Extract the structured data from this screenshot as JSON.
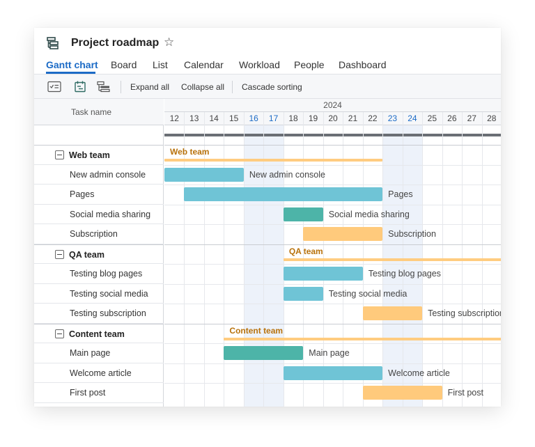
{
  "header": {
    "title": "Project roadmap",
    "app_icon": "gantt-icon",
    "star_icon": "star-icon"
  },
  "tabs": [
    {
      "label": "Gantt chart",
      "active": true
    },
    {
      "label": "Board"
    },
    {
      "label": "List"
    },
    {
      "label": "Calendar"
    },
    {
      "label": "Workload"
    },
    {
      "label": "People"
    },
    {
      "label": "Dashboard"
    }
  ],
  "toolbar": {
    "icons": [
      "checklist-icon",
      "schedule-icon",
      "hierarchy-icon"
    ],
    "expand_all": "Expand all",
    "collapse_all": "Collapse all",
    "cascade_sorting": "Cascade sorting"
  },
  "grid": {
    "column_header": "Task name",
    "year": "2024",
    "days": [
      "12",
      "13",
      "14",
      "15",
      "16",
      "17",
      "18",
      "19",
      "20",
      "21",
      "22",
      "23",
      "24",
      "25",
      "26",
      "27",
      "28"
    ],
    "highlighted_days": [
      "16",
      "17",
      "23",
      "24"
    ]
  },
  "colors": {
    "accent": "#1c6bc6",
    "blue_bar": "#6fc4d6",
    "teal_bar": "#4db4a8",
    "orange_bar": "#ffca7c",
    "group_bar": "#ffcc80",
    "group_label": "#b8720c"
  },
  "groups": [
    {
      "name": "Web team",
      "start_day": 12,
      "end_day": 22,
      "tasks": [
        {
          "name": "New admin console",
          "start_day": 12,
          "end_day": 15,
          "color": "blue"
        },
        {
          "name": "Pages",
          "start_day": 13,
          "end_day": 22,
          "color": "blue"
        },
        {
          "name": "Social media sharing",
          "start_day": 18,
          "end_day": 19,
          "color": "teal"
        },
        {
          "name": "Subscription",
          "start_day": 19,
          "end_day": 22,
          "color": "orange"
        }
      ]
    },
    {
      "name": "QA team",
      "start_day": 18,
      "end_day": 28,
      "tasks": [
        {
          "name": "Testing blog pages",
          "start_day": 18,
          "end_day": 21,
          "color": "blue"
        },
        {
          "name": "Testing social media",
          "start_day": 18,
          "end_day": 19,
          "color": "blue"
        },
        {
          "name": "Testing subscription",
          "start_day": 22,
          "end_day": 24,
          "color": "orange"
        }
      ]
    },
    {
      "name": "Content team",
      "start_day": 15,
      "end_day": 28,
      "tasks": [
        {
          "name": "Main page",
          "start_day": 15,
          "end_day": 18,
          "color": "teal"
        },
        {
          "name": "Welcome article",
          "start_day": 18,
          "end_day": 22,
          "color": "blue"
        },
        {
          "name": "First post",
          "start_day": 22,
          "end_day": 25,
          "color": "orange"
        }
      ]
    }
  ]
}
